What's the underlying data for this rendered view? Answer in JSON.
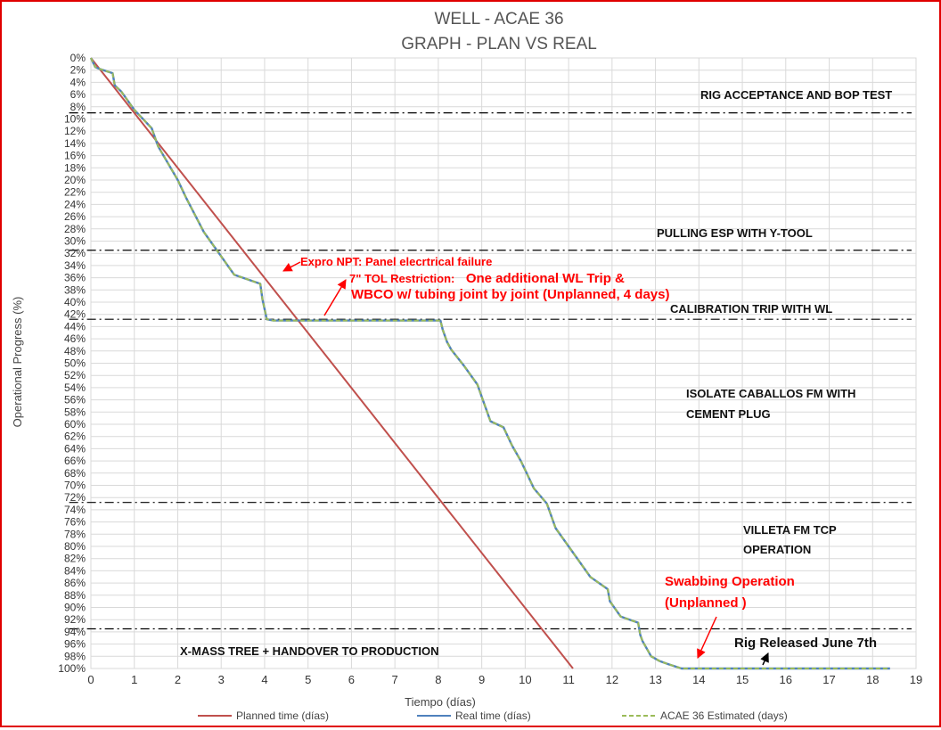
{
  "chart_data": {
    "type": "line",
    "title_line1": "WELL -  ACAE 36",
    "title_line2": "GRAPH  - PLAN VS REAL",
    "xlabel": "Tiempo (días)",
    "ylabel": "Operational Progress (%)",
    "xlim": [
      0,
      19
    ],
    "ylim": [
      0,
      100
    ],
    "y_inverted": true,
    "grid": true,
    "legend_position": "bottom",
    "x_ticks": [
      "0",
      "1",
      "2",
      "3",
      "4",
      "5",
      "6",
      "7",
      "8",
      "9",
      "10",
      "11",
      "12",
      "13",
      "14",
      "15",
      "16",
      "17",
      "18",
      "19"
    ],
    "y_ticks": [
      "0%",
      "2%",
      "4%",
      "6%",
      "8%",
      "10%",
      "12%",
      "14%",
      "16%",
      "18%",
      "20%",
      "22%",
      "24%",
      "26%",
      "28%",
      "30%",
      "32%",
      "34%",
      "36%",
      "38%",
      "40%",
      "42%",
      "44%",
      "46%",
      "48%",
      "50%",
      "52%",
      "54%",
      "56%",
      "58%",
      "60%",
      "62%",
      "64%",
      "66%",
      "68%",
      "70%",
      "72%",
      "74%",
      "76%",
      "78%",
      "80%",
      "82%",
      "84%",
      "86%",
      "88%",
      "90%",
      "92%",
      "94%",
      "96%",
      "98%",
      "100%"
    ],
    "series": [
      {
        "name": "Planned time (días)",
        "color": "#c0504d",
        "x": [
          0,
          11.1
        ],
        "y": [
          0,
          100
        ]
      },
      {
        "name": "Real time (días)",
        "color": "#4f81bd",
        "x": [
          0,
          0.1,
          0.2,
          0.5,
          0.55,
          0.7,
          1.0,
          1.4,
          1.55,
          2.0,
          2.2,
          2.6,
          2.75,
          3.0,
          3.3,
          3.9,
          3.95,
          4.05,
          4.2,
          6.0,
          8.05,
          8.1,
          8.2,
          8.3,
          8.6,
          8.9,
          9.0,
          9.1,
          9.2,
          9.5,
          9.7,
          9.9,
          10.0,
          10.2,
          10.5,
          10.7,
          11.0,
          11.5,
          11.9,
          11.95,
          12.2,
          12.6,
          12.65,
          12.7,
          12.9,
          13.1,
          13.3,
          13.6,
          14.0,
          16.0,
          18.0,
          18.4
        ],
        "y": [
          0,
          1.5,
          1.8,
          2.5,
          4.5,
          5.5,
          8.5,
          11.5,
          14.5,
          20,
          23,
          28.5,
          30,
          32.5,
          35.5,
          37,
          39.5,
          42.8,
          43,
          43,
          43,
          44.5,
          46.5,
          47.8,
          50.5,
          53.5,
          55.5,
          57.5,
          59.5,
          60.5,
          63.5,
          66,
          67.5,
          70.5,
          73,
          77,
          80,
          85,
          87,
          89,
          91.5,
          92.5,
          94.5,
          95.5,
          98,
          98.8,
          99.3,
          100,
          100,
          100,
          100,
          100
        ]
      },
      {
        "name": "ACAE 36 Estimated (days)",
        "color": "#9bbb59",
        "x": [
          0,
          0.1,
          0.2,
          0.5,
          0.55,
          0.7,
          1.0,
          1.4,
          1.55,
          2.0,
          2.2,
          2.6,
          2.75,
          3.0,
          3.3,
          3.9,
          3.95,
          4.05,
          4.2,
          6.0,
          8.05,
          8.1,
          8.2,
          8.3,
          8.6,
          8.9,
          9.0,
          9.1,
          9.2,
          9.5,
          9.7,
          9.9,
          10.0,
          10.2,
          10.5,
          10.7,
          11.0,
          11.5,
          11.9,
          11.95,
          12.2,
          12.6,
          12.65,
          12.7,
          12.9,
          13.1,
          13.3,
          13.6,
          14.0,
          16.0,
          18.0,
          18.4
        ],
        "y": [
          0,
          1.5,
          1.8,
          2.5,
          4.5,
          5.5,
          8.5,
          11.5,
          14.5,
          20,
          23,
          28.5,
          30,
          32.5,
          35.5,
          37,
          39.5,
          42.8,
          43,
          43,
          43,
          44.5,
          46.5,
          47.8,
          50.5,
          53.5,
          55.5,
          57.5,
          59.5,
          60.5,
          63.5,
          66,
          67.5,
          70.5,
          73,
          77,
          80,
          85,
          87,
          89,
          91.5,
          92.5,
          94.5,
          95.5,
          98,
          98.8,
          99.3,
          100,
          100,
          100,
          100,
          100
        ]
      }
    ],
    "phase_lines": [
      9,
      31.5,
      42.8,
      72.8,
      93.5
    ],
    "phase_labels": [
      "RIG ACCEPTANCE AND BOP TEST",
      "PULLING ESP WITH Y-TOOL",
      "CALIBRATION TRIP WITH WL",
      "ISOLATE CABALLOS FM WITH",
      "CEMENT PLUG",
      "VILLETA FM TCP",
      "OPERATION",
      "X-MASS TREE + HANDOVER TO PRODUCTION"
    ],
    "annotations": {
      "expro": "Expro NPT: Panel elecrtrical failure",
      "tol_prefix": "7\" TOL Restriction:",
      "tol_main": "One additional WL Trip &",
      "tol_line2": "WBCO w/ tubing joint by joint (Unplanned, 4 days)",
      "swab1": "Swabbing Operation",
      "swab2": "(Unplanned )",
      "rig_released": "Rig Released June 7th"
    }
  }
}
